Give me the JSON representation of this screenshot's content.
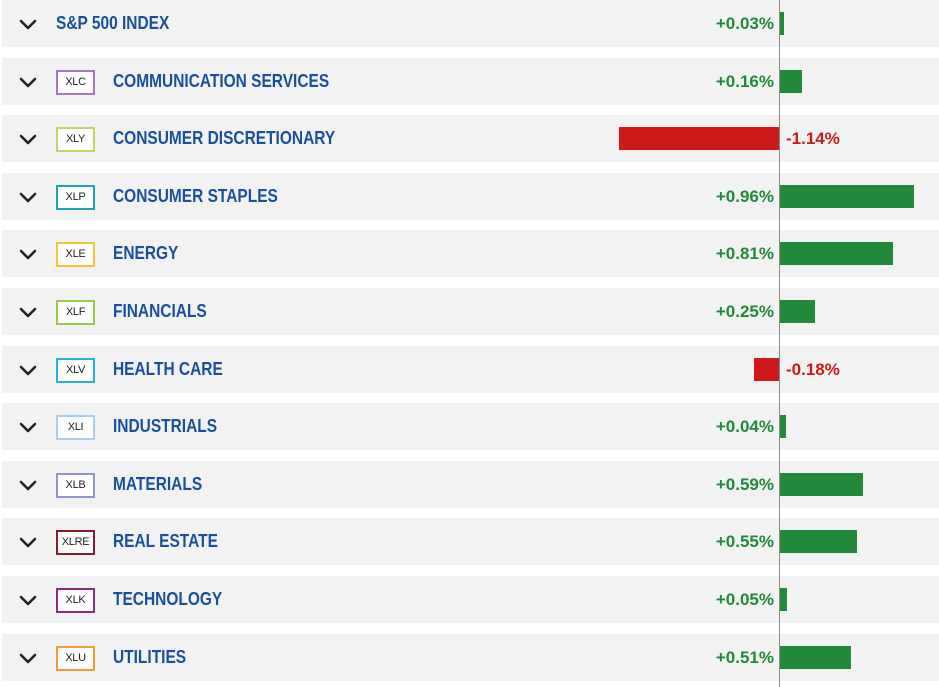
{
  "colors": {
    "positive": "#22883a",
    "negative": "#cc1a1a",
    "label": "#1a4f9c",
    "row_bg": "#f2f2f2"
  },
  "icons": {
    "expand": "chevron-down-icon"
  },
  "chart_data": {
    "type": "bar",
    "orientation": "horizontal",
    "title": "",
    "xlabel": "",
    "ylabel": "",
    "unit": "%",
    "categories": [
      "S&P 500 INDEX",
      "COMMUNICATION SERVICES",
      "CONSUMER DISCRETIONARY",
      "CONSUMER STAPLES",
      "ENERGY",
      "FINANCIALS",
      "HEALTH CARE",
      "INDUSTRIALS",
      "MATERIALS",
      "REAL ESTATE",
      "TECHNOLOGY",
      "UTILITIES"
    ],
    "values": [
      0.03,
      0.16,
      -1.14,
      0.96,
      0.81,
      0.25,
      -0.18,
      0.04,
      0.59,
      0.55,
      0.05,
      0.51
    ],
    "value_labels": [
      "+0.03%",
      "+0.16%",
      "-1.14%",
      "+0.96%",
      "+0.81%",
      "+0.25%",
      "-0.18%",
      "+0.04%",
      "+0.59%",
      "+0.55%",
      "+0.05%",
      "+0.51%"
    ],
    "rows": [
      {
        "name": "S&P 500 INDEX",
        "ticker": null,
        "ticker_color": null,
        "value": 0.03,
        "label": "+0.03%"
      },
      {
        "name": "COMMUNICATION SERVICES",
        "ticker": "XLC",
        "ticker_color": "#a977c4",
        "value": 0.16,
        "label": "+0.16%"
      },
      {
        "name": "CONSUMER DISCRETIONARY",
        "ticker": "XLY",
        "ticker_color": "#c9cf63",
        "value": -1.14,
        "label": "-1.14%"
      },
      {
        "name": "CONSUMER STAPLES",
        "ticker": "XLP",
        "ticker_color": "#1fa5b0",
        "value": 0.96,
        "label": "+0.96%"
      },
      {
        "name": "ENERGY",
        "ticker": "XLE",
        "ticker_color": "#f0c538",
        "value": 0.81,
        "label": "+0.81%"
      },
      {
        "name": "FINANCIALS",
        "ticker": "XLF",
        "ticker_color": "#9dc94a",
        "value": 0.25,
        "label": "+0.25%"
      },
      {
        "name": "HEALTH CARE",
        "ticker": "XLV",
        "ticker_color": "#27b1e0",
        "value": -0.18,
        "label": "-0.18%"
      },
      {
        "name": "INDUSTRIALS",
        "ticker": "XLI",
        "ticker_color": "#a9cdee",
        "value": 0.04,
        "label": "+0.04%"
      },
      {
        "name": "MATERIALS",
        "ticker": "XLB",
        "ticker_color": "#8f97c6",
        "value": 0.59,
        "label": "+0.59%"
      },
      {
        "name": "REAL ESTATE",
        "ticker": "XLRE",
        "ticker_color": "#8b1a2b",
        "value": 0.55,
        "label": "+0.55%"
      },
      {
        "name": "TECHNOLOGY",
        "ticker": "XLK",
        "ticker_color": "#8a2a86",
        "value": 0.05,
        "label": "+0.05%"
      },
      {
        "name": "UTILITIES",
        "ticker": "XLU",
        "ticker_color": "#f29a3c",
        "value": 0.51,
        "label": "+0.51%"
      }
    ],
    "grid": false,
    "legend": "none",
    "zero_line": true
  }
}
